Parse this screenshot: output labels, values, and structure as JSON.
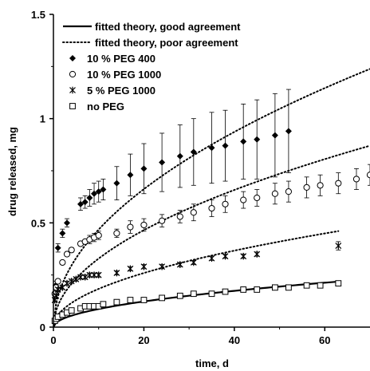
{
  "chart_data": {
    "type": "scatter",
    "xlabel": "time, d",
    "ylabel": "drug released, mg",
    "xlim": [
      0,
      70
    ],
    "ylim": [
      0,
      1.5
    ],
    "x_ticks": [
      0,
      20,
      40,
      60
    ],
    "x_tick_labels": [
      "0",
      "20",
      "40",
      "60"
    ],
    "y_ticks": [
      0,
      0.5,
      1,
      1.5
    ],
    "y_tick_labels": [
      "0",
      "0.5",
      "1",
      "1.5"
    ],
    "grid": false,
    "legend_position": "top-left",
    "legend": [
      {
        "label": "fitted theory, good agreement",
        "style": "solid-line"
      },
      {
        "label": "fitted theory, poor agreement",
        "style": "dotted-line"
      },
      {
        "label": "10 % PEG 400",
        "style": "filled-diamond"
      },
      {
        "label": "10 % PEG 1000",
        "style": "open-circle"
      },
      {
        "label": "5 % PEG 1000",
        "style": "star"
      },
      {
        "label": "no PEG",
        "style": "open-square"
      }
    ],
    "curves": [
      {
        "label": "fitted theory, poor agreement",
        "style": "dotted",
        "coef": 0.148,
        "x_range": [
          0,
          70
        ]
      },
      {
        "label": "fitted theory, poor agreement",
        "style": "dotted",
        "coef": 0.104,
        "x_range": [
          0,
          70
        ]
      },
      {
        "label": "fitted theory, poor agreement",
        "style": "dotted",
        "coef": 0.058,
        "x_range": [
          0,
          63
        ]
      },
      {
        "label": "fitted theory, good agreement",
        "style": "solid",
        "coef": 0.0275,
        "x_range": [
          0,
          63
        ]
      }
    ],
    "series": [
      {
        "name": "10 % PEG 400",
        "marker": "filled-diamond",
        "x": [
          0.5,
          1,
          2,
          3,
          6,
          7,
          8,
          9,
          10,
          11,
          14,
          17,
          20,
          24,
          28,
          31,
          35,
          38,
          42,
          45,
          49,
          52
        ],
        "y": [
          0.2,
          0.38,
          0.45,
          0.5,
          0.59,
          0.6,
          0.62,
          0.64,
          0.65,
          0.66,
          0.69,
          0.73,
          0.76,
          0.79,
          0.82,
          0.84,
          0.86,
          0.87,
          0.89,
          0.9,
          0.92,
          0.94
        ],
        "err": [
          0.02,
          0.02,
          0.02,
          0.02,
          0.03,
          0.03,
          0.04,
          0.05,
          0.05,
          0.05,
          0.08,
          0.1,
          0.12,
          0.14,
          0.15,
          0.16,
          0.17,
          0.17,
          0.18,
          0.19,
          0.2,
          0.2
        ]
      },
      {
        "name": "10 % PEG 1000",
        "marker": "open-circle",
        "x": [
          0.3,
          0.6,
          1,
          2,
          3,
          4,
          6,
          7,
          8,
          9,
          10,
          14,
          17,
          20,
          24,
          28,
          31,
          35,
          38,
          42,
          45,
          49,
          52,
          56,
          59,
          63,
          67,
          70
        ],
        "y": [
          0.16,
          0.19,
          0.22,
          0.31,
          0.35,
          0.37,
          0.4,
          0.41,
          0.42,
          0.43,
          0.44,
          0.45,
          0.48,
          0.49,
          0.51,
          0.53,
          0.55,
          0.57,
          0.59,
          0.61,
          0.62,
          0.64,
          0.65,
          0.67,
          0.68,
          0.69,
          0.71,
          0.73
        ],
        "err": [
          0.01,
          0.01,
          0.01,
          0.01,
          0.01,
          0.01,
          0.01,
          0.01,
          0.02,
          0.02,
          0.02,
          0.02,
          0.03,
          0.03,
          0.03,
          0.03,
          0.04,
          0.04,
          0.04,
          0.04,
          0.04,
          0.05,
          0.05,
          0.05,
          0.05,
          0.05,
          0.05,
          0.05
        ]
      },
      {
        "name": "5 % PEG 1000",
        "marker": "star",
        "x": [
          0.3,
          0.6,
          1,
          2,
          3,
          4,
          5,
          6,
          7,
          8,
          9,
          10,
          14,
          17,
          20,
          24,
          28,
          31,
          35,
          38,
          42,
          45,
          63
        ],
        "y": [
          0.13,
          0.15,
          0.18,
          0.19,
          0.21,
          0.22,
          0.23,
          0.24,
          0.24,
          0.25,
          0.25,
          0.25,
          0.26,
          0.28,
          0.29,
          0.29,
          0.3,
          0.31,
          0.33,
          0.34,
          0.34,
          0.35,
          0.39
        ],
        "err": [
          0.01,
          0.01,
          0.01,
          0.01,
          0.01,
          0.01,
          0.01,
          0.01,
          0.01,
          0.01,
          0.01,
          0.01,
          0.01,
          0.01,
          0.01,
          0.01,
          0.01,
          0.01,
          0.01,
          0.01,
          0.01,
          0.01,
          0.02
        ]
      },
      {
        "name": "no PEG",
        "marker": "open-square",
        "x": [
          0.3,
          0.6,
          1,
          2,
          3,
          4,
          6,
          7,
          8,
          9,
          10,
          11,
          14,
          17,
          20,
          24,
          28,
          31,
          35,
          38,
          42,
          45,
          49,
          52,
          56,
          59,
          63
        ],
        "y": [
          0.03,
          0.04,
          0.05,
          0.06,
          0.07,
          0.08,
          0.09,
          0.1,
          0.1,
          0.1,
          0.1,
          0.11,
          0.12,
          0.13,
          0.13,
          0.14,
          0.15,
          0.16,
          0.16,
          0.17,
          0.18,
          0.18,
          0.19,
          0.19,
          0.2,
          0.2,
          0.21
        ],
        "err": [
          0,
          0,
          0,
          0,
          0,
          0,
          0,
          0,
          0,
          0,
          0,
          0,
          0,
          0,
          0,
          0,
          0,
          0,
          0,
          0,
          0,
          0,
          0,
          0,
          0,
          0,
          0
        ]
      }
    ]
  }
}
